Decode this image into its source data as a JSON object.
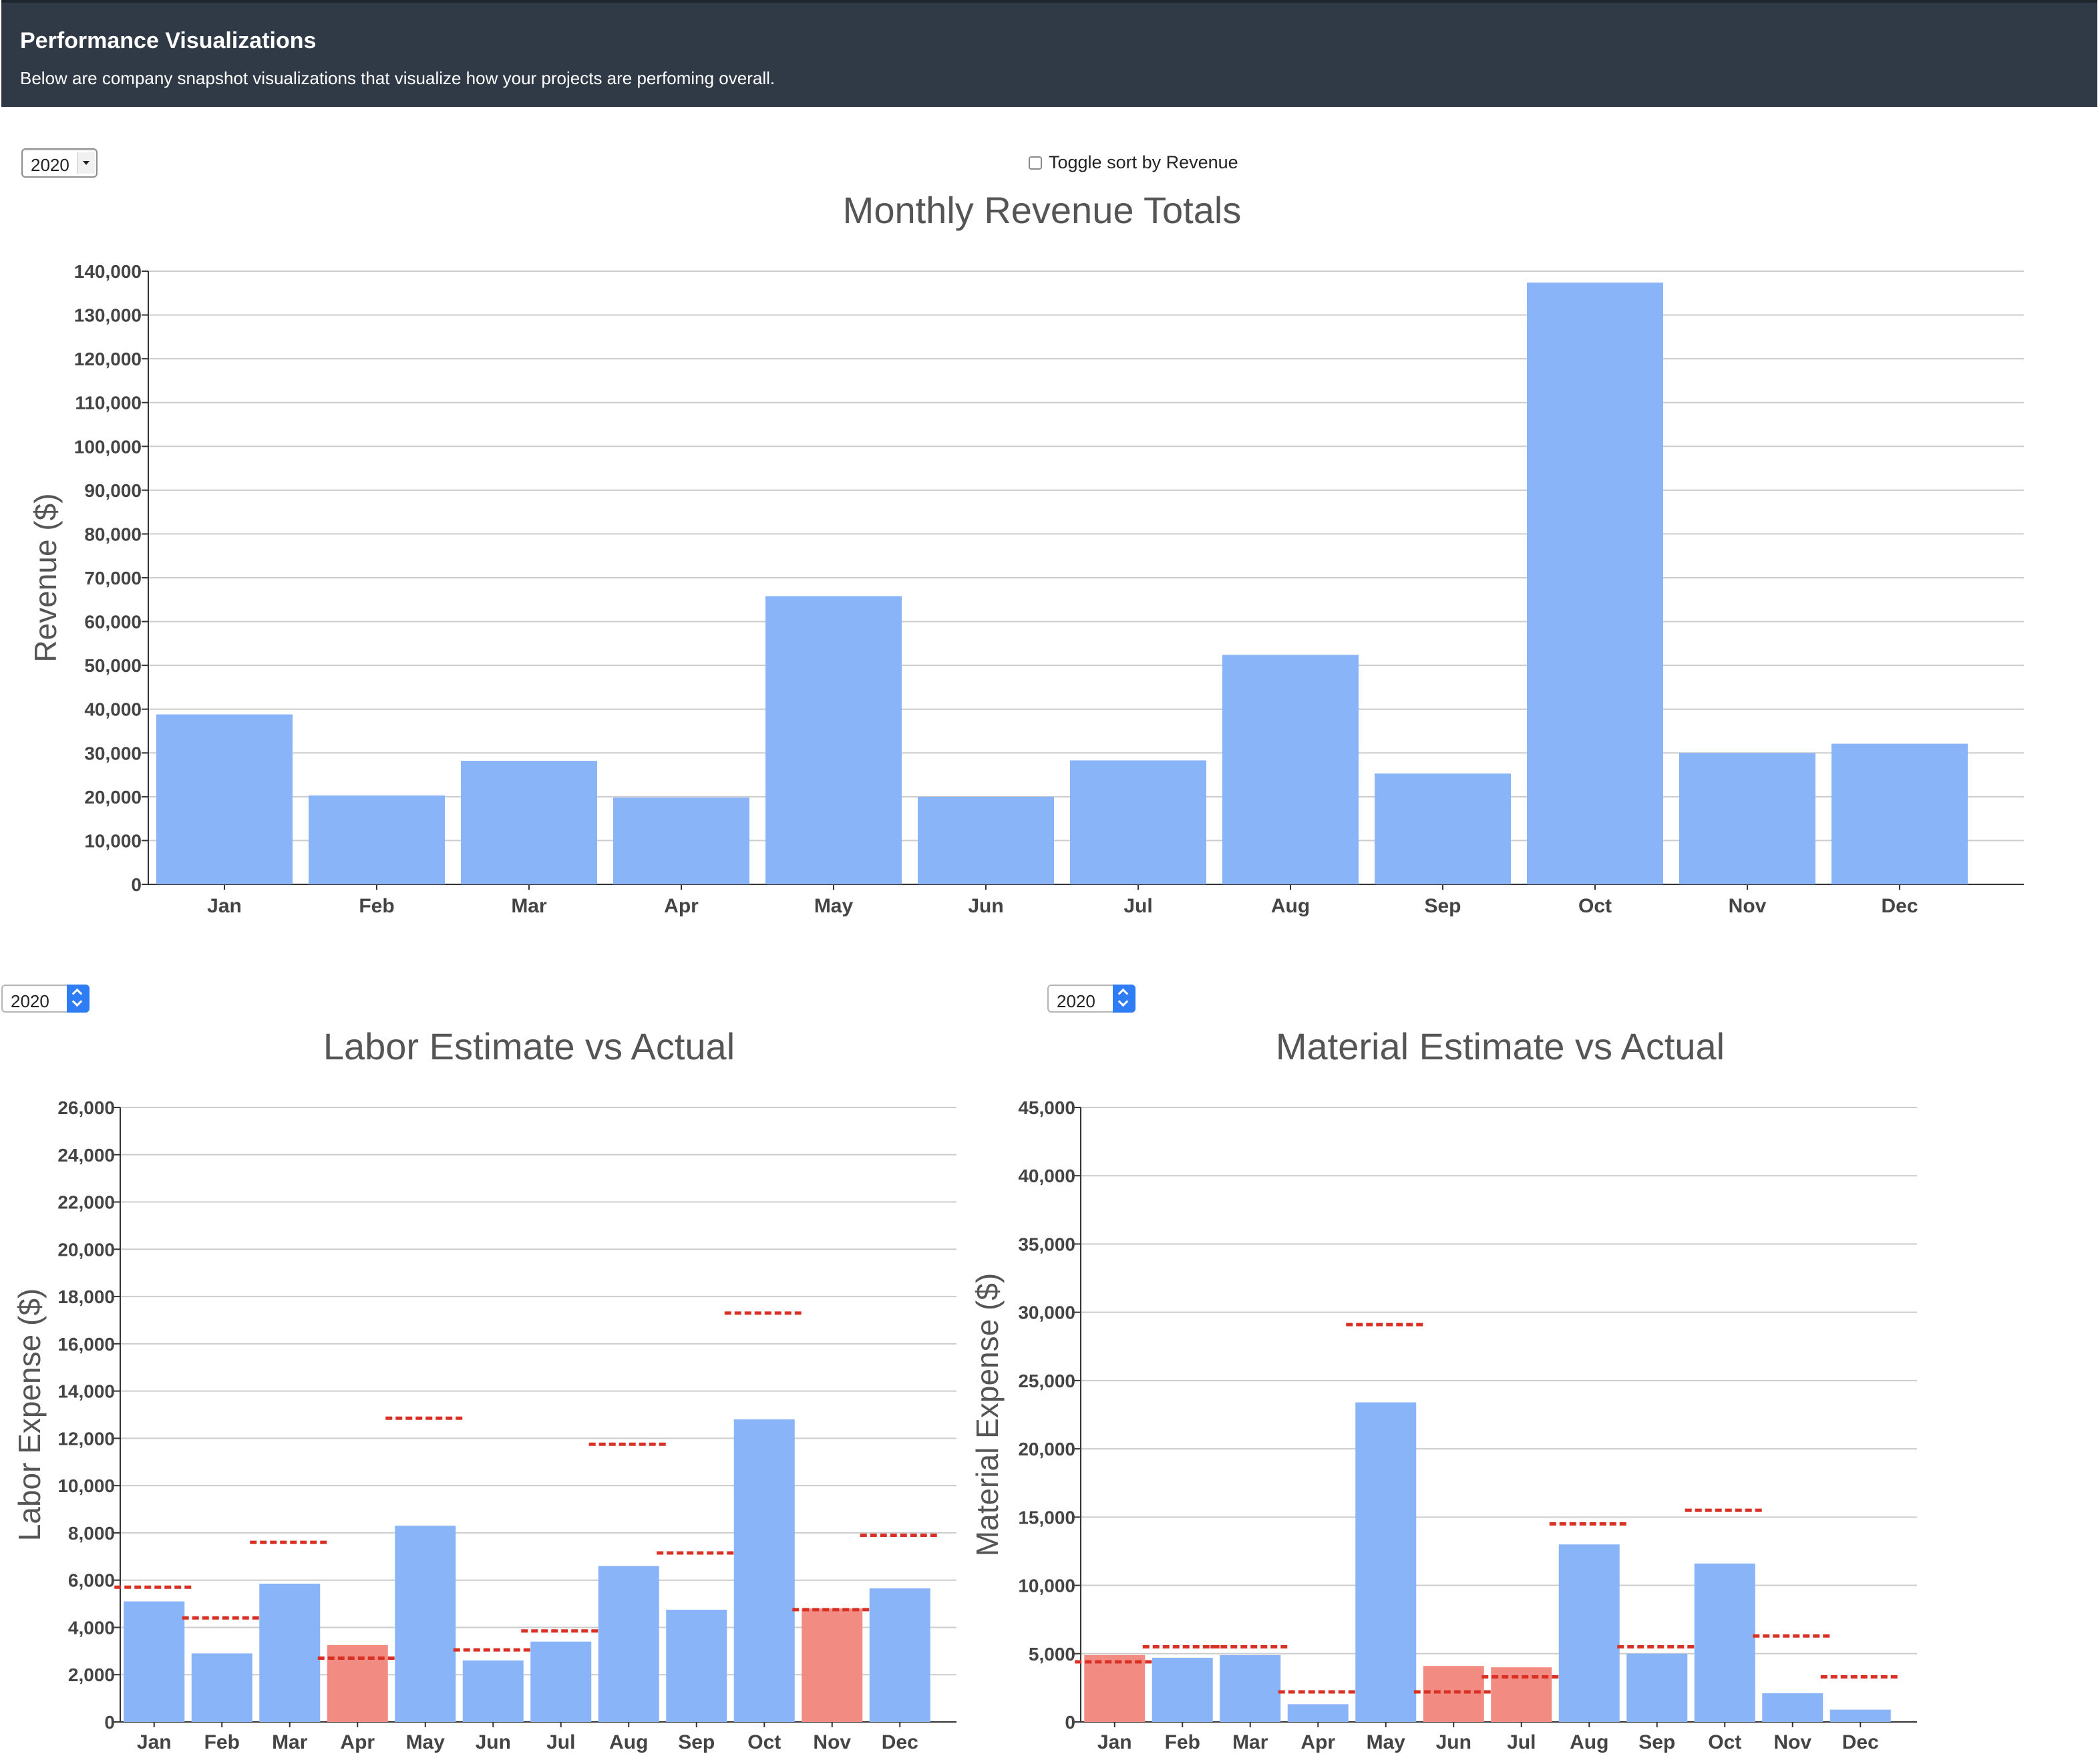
{
  "header": {
    "title": "Performance Visualizations",
    "subtitle": "Below are company snapshot visualizations that visualize how your projects are perfoming overall."
  },
  "controls": {
    "revenue_year": "2020",
    "labor_year": "2020",
    "material_year": "2020",
    "toggle_label": "Toggle sort by Revenue",
    "toggle_checked": false
  },
  "colors": {
    "bar_under": "#8ab4f8",
    "bar_over": "#f28b82",
    "estimate_line": "#d93025",
    "grid": "#cccccc"
  },
  "chart_data": [
    {
      "id": "revenue",
      "type": "bar",
      "title": "Monthly Revenue Totals",
      "xlabel": "",
      "ylabel": "Revenue ($)",
      "categories": [
        "Jan",
        "Feb",
        "Mar",
        "Apr",
        "May",
        "Jun",
        "Jul",
        "Aug",
        "Sep",
        "Oct",
        "Nov",
        "Dec"
      ],
      "values": [
        38800,
        20300,
        28200,
        19800,
        65800,
        20000,
        28300,
        52400,
        25300,
        137400,
        30000,
        32100
      ],
      "ylim": [
        0,
        140000
      ],
      "yticks": [
        "0",
        "10,000",
        "20,000",
        "30,000",
        "40,000",
        "50,000",
        "60,000",
        "70,000",
        "80,000",
        "90,000",
        "100,000",
        "110,000",
        "120,000",
        "130,000",
        "140,000"
      ],
      "grid": true
    },
    {
      "id": "labor",
      "type": "bar",
      "title": "Labor Estimate vs Actual",
      "xlabel": "",
      "ylabel": "Labor Expense ($)",
      "categories": [
        "Jan",
        "Feb",
        "Mar",
        "Apr",
        "May",
        "Jun",
        "Jul",
        "Aug",
        "Sep",
        "Oct",
        "Nov",
        "Dec"
      ],
      "values": [
        5100,
        2900,
        5850,
        3250,
        8300,
        2600,
        3400,
        6600,
        4750,
        12800,
        4800,
        5650
      ],
      "estimates": [
        5700,
        4400,
        7600,
        2700,
        12850,
        3050,
        3850,
        11750,
        7150,
        17300,
        4750,
        7900
      ],
      "ylim": [
        0,
        26000
      ],
      "yticks": [
        "0",
        "2,000",
        "4,000",
        "6,000",
        "8,000",
        "10,000",
        "12,000",
        "14,000",
        "16,000",
        "18,000",
        "20,000",
        "22,000",
        "24,000",
        "26,000"
      ],
      "grid": true
    },
    {
      "id": "material",
      "type": "bar",
      "title": "Material Estimate vs Actual",
      "xlabel": "",
      "ylabel": "Material Expense ($)",
      "categories": [
        "Jan",
        "Feb",
        "Mar",
        "Apr",
        "May",
        "Jun",
        "Jul",
        "Aug",
        "Sep",
        "Oct",
        "Nov",
        "Dec"
      ],
      "values": [
        4900,
        4700,
        4900,
        1300,
        23400,
        4100,
        4000,
        13000,
        5000,
        11600,
        2100,
        900
      ],
      "estimates": [
        4400,
        5500,
        5500,
        2200,
        29100,
        2200,
        3300,
        14500,
        5500,
        15500,
        6300,
        3300
      ],
      "ylim": [
        0,
        45000
      ],
      "yticks": [
        "0",
        "5,000",
        "10,000",
        "15,000",
        "20,000",
        "25,000",
        "30,000",
        "35,000",
        "40,000",
        "45,000"
      ],
      "grid": true
    }
  ]
}
